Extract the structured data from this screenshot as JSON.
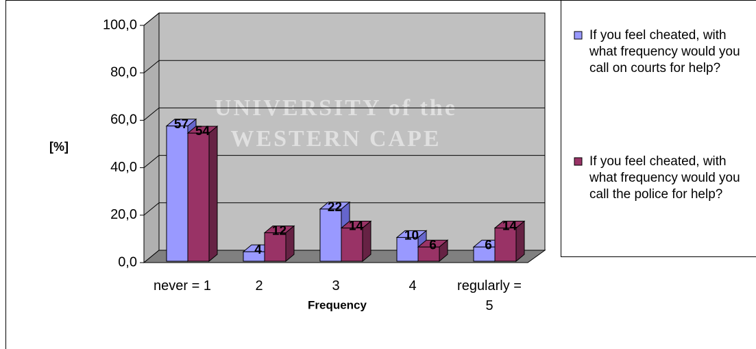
{
  "chart_data": {
    "type": "bar3d",
    "categories": [
      "never = 1",
      "2",
      "3",
      "4",
      "regularly = 5"
    ],
    "x_label": "Frequency",
    "y_label": "[%]",
    "series": [
      {
        "name": "If you feel cheated, with what frequency would you call on courts for help?",
        "color": "#9999ff",
        "side_color": "#6666cc",
        "values": [
          57,
          4,
          22,
          10,
          6
        ]
      },
      {
        "name": "If you feel cheated, with what frequency would you call the police for help?",
        "color": "#993366",
        "side_color": "#662244",
        "values": [
          54,
          12,
          14,
          6,
          14
        ]
      }
    ],
    "ylim": [
      0,
      100
    ],
    "yticks": [
      {
        "value": 0,
        "label": "0,0"
      },
      {
        "value": 20,
        "label": "20,0"
      },
      {
        "value": 40,
        "label": "40,0"
      },
      {
        "value": 60,
        "label": "60,0"
      },
      {
        "value": 80,
        "label": "80,0"
      },
      {
        "value": 100,
        "label": "100,0"
      }
    ],
    "grid": true,
    "legend": "right",
    "annotations": [
      "UNIVERSITY of the",
      "WESTERN CAPE"
    ]
  }
}
